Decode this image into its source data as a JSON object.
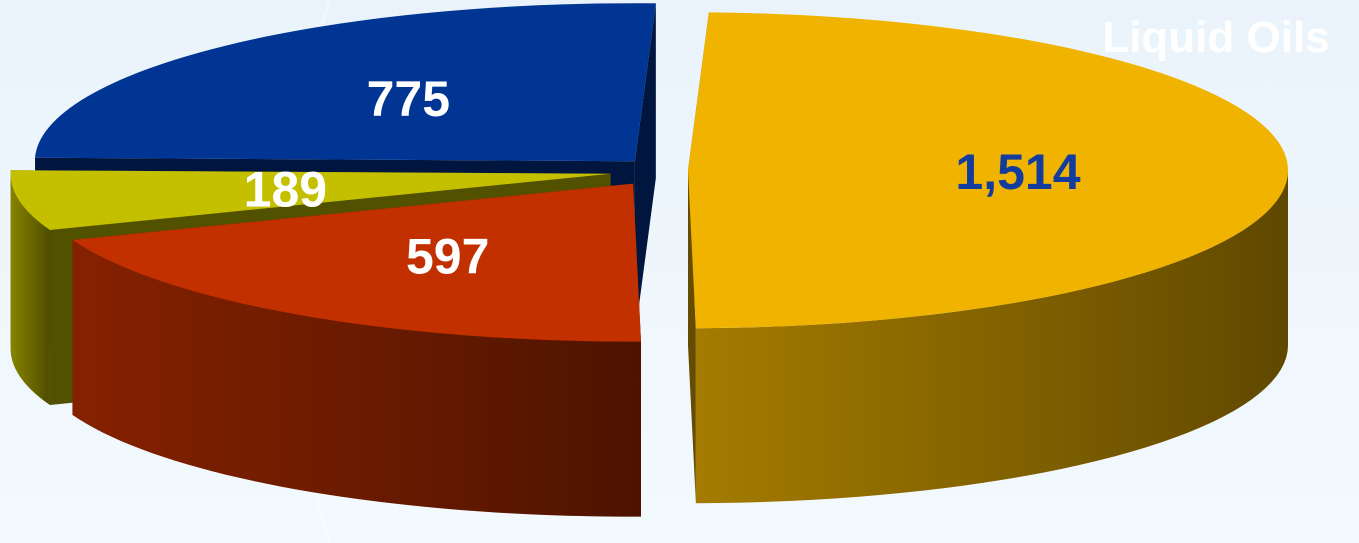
{
  "chart_data": {
    "type": "pie",
    "title": "Liquid Oils",
    "slices": [
      {
        "label": "1,514",
        "value": 1514,
        "color": "#f0b400",
        "label_color": "#123c9e"
      },
      {
        "label": "597",
        "value": 597,
        "color": "#c23000",
        "label_color": "#ffffff"
      },
      {
        "label": "189",
        "value": 189,
        "color": "#c4c000",
        "label_color": "#ffffff"
      },
      {
        "label": "775",
        "value": 775,
        "color": "#003594",
        "label_color": "#ffffff"
      }
    ]
  },
  "colors": {
    "background_top": "#eaf3fb",
    "background_bottom": "#f3fafe",
    "title": "#ffffff"
  }
}
